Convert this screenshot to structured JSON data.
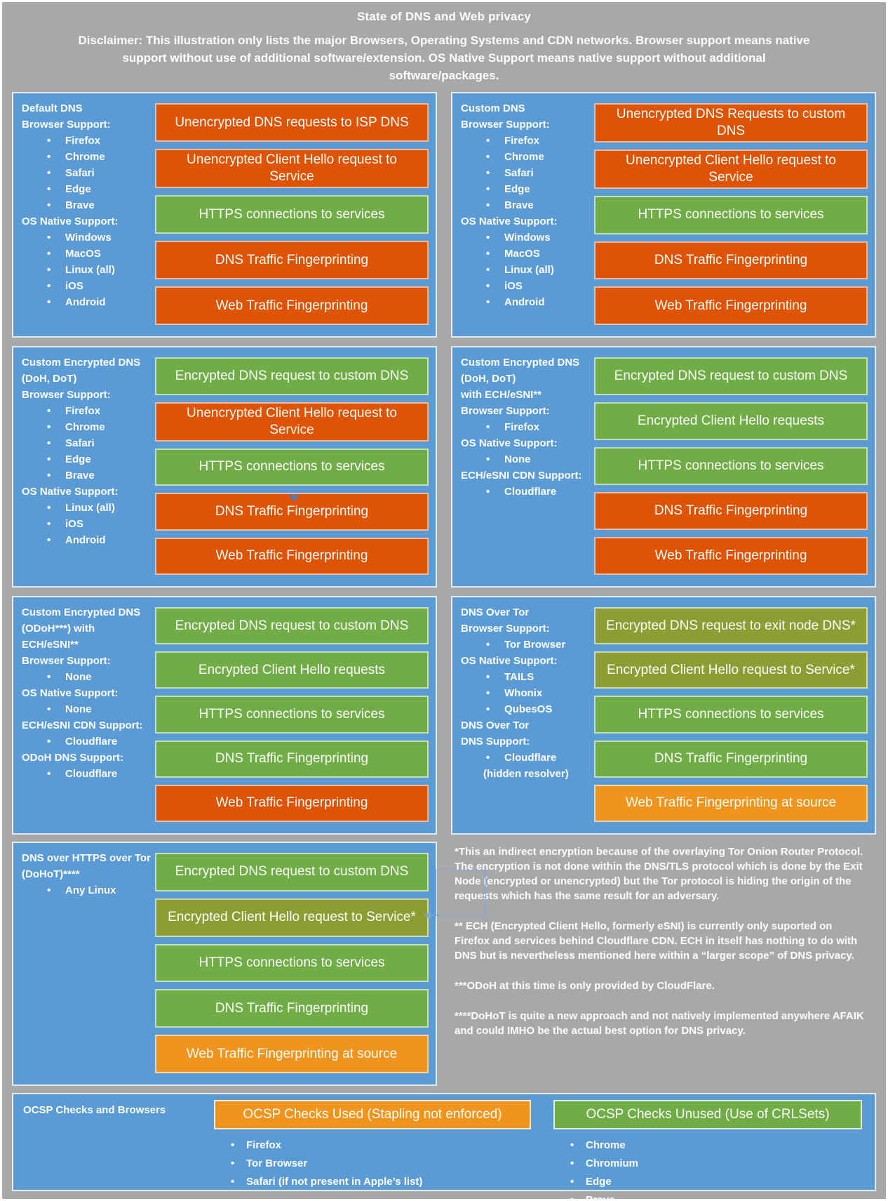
{
  "colors": {
    "background": "#A8A8A8",
    "panel_blue": "#5B9BD5",
    "bad": "#DF5306",
    "good": "#70AD47",
    "indirect": "#8C9E33",
    "warn": "#F0941E",
    "text": "#FFFFFF"
  },
  "header": {
    "title": "State of DNS and Web privacy",
    "disclaimer": "Disclaimer: This illustration only lists the major Browsers, Operating Systems and CDN networks. Browser support means native support without use of additional software/extension. OS Native Support means native support without additional software/packages."
  },
  "panels": [
    {
      "name": "default-dns",
      "info": [
        {
          "t": "h",
          "x": "Default DNS"
        },
        {
          "t": "l",
          "x": "Browser Support:"
        },
        {
          "t": "b",
          "x": "Firefox"
        },
        {
          "t": "b",
          "x": "Chrome"
        },
        {
          "t": "b",
          "x": "Safari"
        },
        {
          "t": "b",
          "x": "Edge"
        },
        {
          "t": "b",
          "x": "Brave"
        },
        {
          "t": "l",
          "x": "OS Native Support:"
        },
        {
          "t": "b",
          "x": "Windows"
        },
        {
          "t": "b",
          "x": "MacOS"
        },
        {
          "t": "b",
          "x": "Linux (all)"
        },
        {
          "t": "b",
          "x": "iOS"
        },
        {
          "t": "b",
          "x": "Android"
        }
      ],
      "bars": [
        {
          "color": "bad",
          "text": "Unencrypted DNS requests to ISP DNS"
        },
        {
          "color": "bad",
          "text": "Unencrypted Client Hello request to Service"
        },
        {
          "color": "good",
          "text": "HTTPS connections to services"
        },
        {
          "color": "bad",
          "text": "DNS Traffic Fingerprinting"
        },
        {
          "color": "bad",
          "text": "Web Traffic Fingerprinting"
        }
      ]
    },
    {
      "name": "custom-dns",
      "info": [
        {
          "t": "h",
          "x": "Custom DNS"
        },
        {
          "t": "l",
          "x": "Browser Support:"
        },
        {
          "t": "b",
          "x": "Firefox"
        },
        {
          "t": "b",
          "x": "Chrome"
        },
        {
          "t": "b",
          "x": "Safari"
        },
        {
          "t": "b",
          "x": "Edge"
        },
        {
          "t": "b",
          "x": "Brave"
        },
        {
          "t": "l",
          "x": "OS Native Support:"
        },
        {
          "t": "b",
          "x": "Windows"
        },
        {
          "t": "b",
          "x": "MacOS"
        },
        {
          "t": "b",
          "x": "Linux (all)"
        },
        {
          "t": "b",
          "x": "iOS"
        },
        {
          "t": "b",
          "x": "Android"
        }
      ],
      "bars": [
        {
          "color": "bad",
          "text": "Unencrypted DNS Requests to custom DNS"
        },
        {
          "color": "bad",
          "text": "Unencrypted Client Hello request to Service"
        },
        {
          "color": "good",
          "text": "HTTPS connections to services"
        },
        {
          "color": "bad",
          "text": "DNS Traffic Fingerprinting"
        },
        {
          "color": "bad",
          "text": "Web Traffic Fingerprinting"
        }
      ]
    },
    {
      "name": "custom-encrypted-dns-doh-dot",
      "info": [
        {
          "t": "h",
          "x": "Custom Encrypted DNS\n(DoH, DoT)"
        },
        {
          "t": "l",
          "x": "Browser Support:"
        },
        {
          "t": "b",
          "x": "Firefox"
        },
        {
          "t": "b",
          "x": "Chrome"
        },
        {
          "t": "b",
          "x": "Safari"
        },
        {
          "t": "b",
          "x": "Edge"
        },
        {
          "t": "b",
          "x": "Brave"
        },
        {
          "t": "l",
          "x": "OS Native Support:"
        },
        {
          "t": "b",
          "x": "Linux (all)"
        },
        {
          "t": "b",
          "x": "iOS"
        },
        {
          "t": "b",
          "x": "Android"
        }
      ],
      "bars": [
        {
          "color": "good",
          "text": "Encrypted DNS request to custom DNS"
        },
        {
          "color": "bad",
          "text": "Unencrypted Client Hello request to Service"
        },
        {
          "color": "good",
          "text": "HTTPS connections to services"
        },
        {
          "color": "bad",
          "text": "DNS Traffic Fingerprinting"
        },
        {
          "color": "bad",
          "text": "Web Traffic Fingerprinting"
        }
      ]
    },
    {
      "name": "custom-encrypted-dns-doh-dot-ech",
      "info": [
        {
          "t": "h",
          "x": "Custom Encrypted DNS\n(DoH, DoT)\nwith ECH/eSNI**"
        },
        {
          "t": "l",
          "x": "Browser Support:"
        },
        {
          "t": "b",
          "x": "Firefox"
        },
        {
          "t": "l",
          "x": "OS Native Support:"
        },
        {
          "t": "b",
          "x": "None"
        },
        {
          "t": "l",
          "x": "ECH/eSNI CDN Support:"
        },
        {
          "t": "b",
          "x": "Cloudflare"
        }
      ],
      "bars": [
        {
          "color": "good",
          "text": "Encrypted DNS request to custom DNS"
        },
        {
          "color": "good",
          "text": "Encrypted Client Hello requests"
        },
        {
          "color": "good",
          "text": "HTTPS connections to services"
        },
        {
          "color": "bad",
          "text": "DNS Traffic Fingerprinting"
        },
        {
          "color": "bad",
          "text": "Web Traffic Fingerprinting"
        }
      ]
    },
    {
      "name": "custom-encrypted-dns-odoh-ech",
      "info": [
        {
          "t": "h",
          "x": "Custom Encrypted DNS\n(ODoH***) with\nECH/eSNI**"
        },
        {
          "t": "l",
          "x": "Browser Support:"
        },
        {
          "t": "b",
          "x": "None"
        },
        {
          "t": "l",
          "x": "OS Native Support:"
        },
        {
          "t": "b",
          "x": "None"
        },
        {
          "t": "l",
          "x": "ECH/eSNI CDN Support:"
        },
        {
          "t": "b",
          "x": "Cloudflare"
        },
        {
          "t": "l",
          "x": "ODoH DNS Support:"
        },
        {
          "t": "b",
          "x": "Cloudflare"
        }
      ],
      "bars": [
        {
          "color": "good",
          "text": "Encrypted DNS request to custom DNS"
        },
        {
          "color": "good",
          "text": "Encrypted Client Hello requests"
        },
        {
          "color": "good",
          "text": "HTTPS connections to services"
        },
        {
          "color": "good",
          "text": "DNS Traffic Fingerprinting"
        },
        {
          "color": "bad",
          "text": "Web Traffic Fingerprinting"
        }
      ]
    },
    {
      "name": "dns-over-tor",
      "info": [
        {
          "t": "h",
          "x": "DNS Over Tor"
        },
        {
          "t": "l",
          "x": "Browser Support:"
        },
        {
          "t": "b",
          "x": "Tor Browser"
        },
        {
          "t": "l",
          "x": "OS Native Support:"
        },
        {
          "t": "b",
          "x": "TAILS"
        },
        {
          "t": "b",
          "x": "Whonix"
        },
        {
          "t": "b",
          "x": "QubesOS"
        },
        {
          "t": "l",
          "x": "DNS Over Tor\nDNS Support:"
        },
        {
          "t": "b",
          "x": "Cloudflare"
        },
        {
          "t": "s",
          "x": "(hidden resolver)"
        }
      ],
      "bars": [
        {
          "color": "indirect",
          "text": "Encrypted DNS request to exit node DNS*"
        },
        {
          "color": "indirect",
          "text": "Encrypted Client Hello request to Service*"
        },
        {
          "color": "good",
          "text": "HTTPS connections to services"
        },
        {
          "color": "good",
          "text": "DNS Traffic Fingerprinting"
        },
        {
          "color": "warn",
          "text": "Web Traffic Fingerprinting at source"
        }
      ]
    },
    {
      "name": "dohot",
      "info": [
        {
          "t": "h",
          "x": "DNS over HTTPS over Tor\n(DoHoT)****"
        },
        {
          "t": "b",
          "x": "Any Linux"
        }
      ],
      "bars": [
        {
          "color": "good",
          "text": "Encrypted DNS request to custom DNS"
        },
        {
          "color": "indirect",
          "text": "Encrypted Client Hello request to Service*"
        },
        {
          "color": "good",
          "text": "HTTPS connections to services"
        },
        {
          "color": "good",
          "text": "DNS Traffic Fingerprinting"
        },
        {
          "color": "warn",
          "text": "Web Traffic Fingerprinting at source"
        }
      ]
    }
  ],
  "footnotes": [
    "*This an indirect encryption because of the overlaying Tor Onion Router Protocol. The encryption is not done within the DNS/TLS protocol which is done by the Exit Node (encrypted or unencrypted) but the Tor protocol is hiding the origin of the requests which has the same result for an adversary.",
    "** ECH (Encrypted Client Hello, formerly eSNI) is currently only suported on Firefox and services behind Cloudflare CDN. ECH in itself has nothing to do with DNS but is nevertheless mentioned here within a “larger scope” of DNS privacy.",
    "***ODoH at this time is only provided by CloudFlare.",
    "****DoHoT is quite a new approach and not natively implemented anywhere AFAIK and could IMHO be the actual best option for DNS privacy."
  ],
  "ocsp": {
    "heading": "OCSP Checks and Browsers",
    "columns": [
      {
        "header": "OCSP Checks Used (Stapling not enforced)",
        "color": "warn",
        "items": [
          "Firefox",
          "Tor Browser",
          "Safari (if not present in Apple’s list)"
        ]
      },
      {
        "header": "OCSP Checks Unused (Use of CRLSets)",
        "color": "good",
        "items": [
          "Chrome",
          "Chromium",
          "Edge",
          "Brave"
        ]
      }
    ]
  }
}
